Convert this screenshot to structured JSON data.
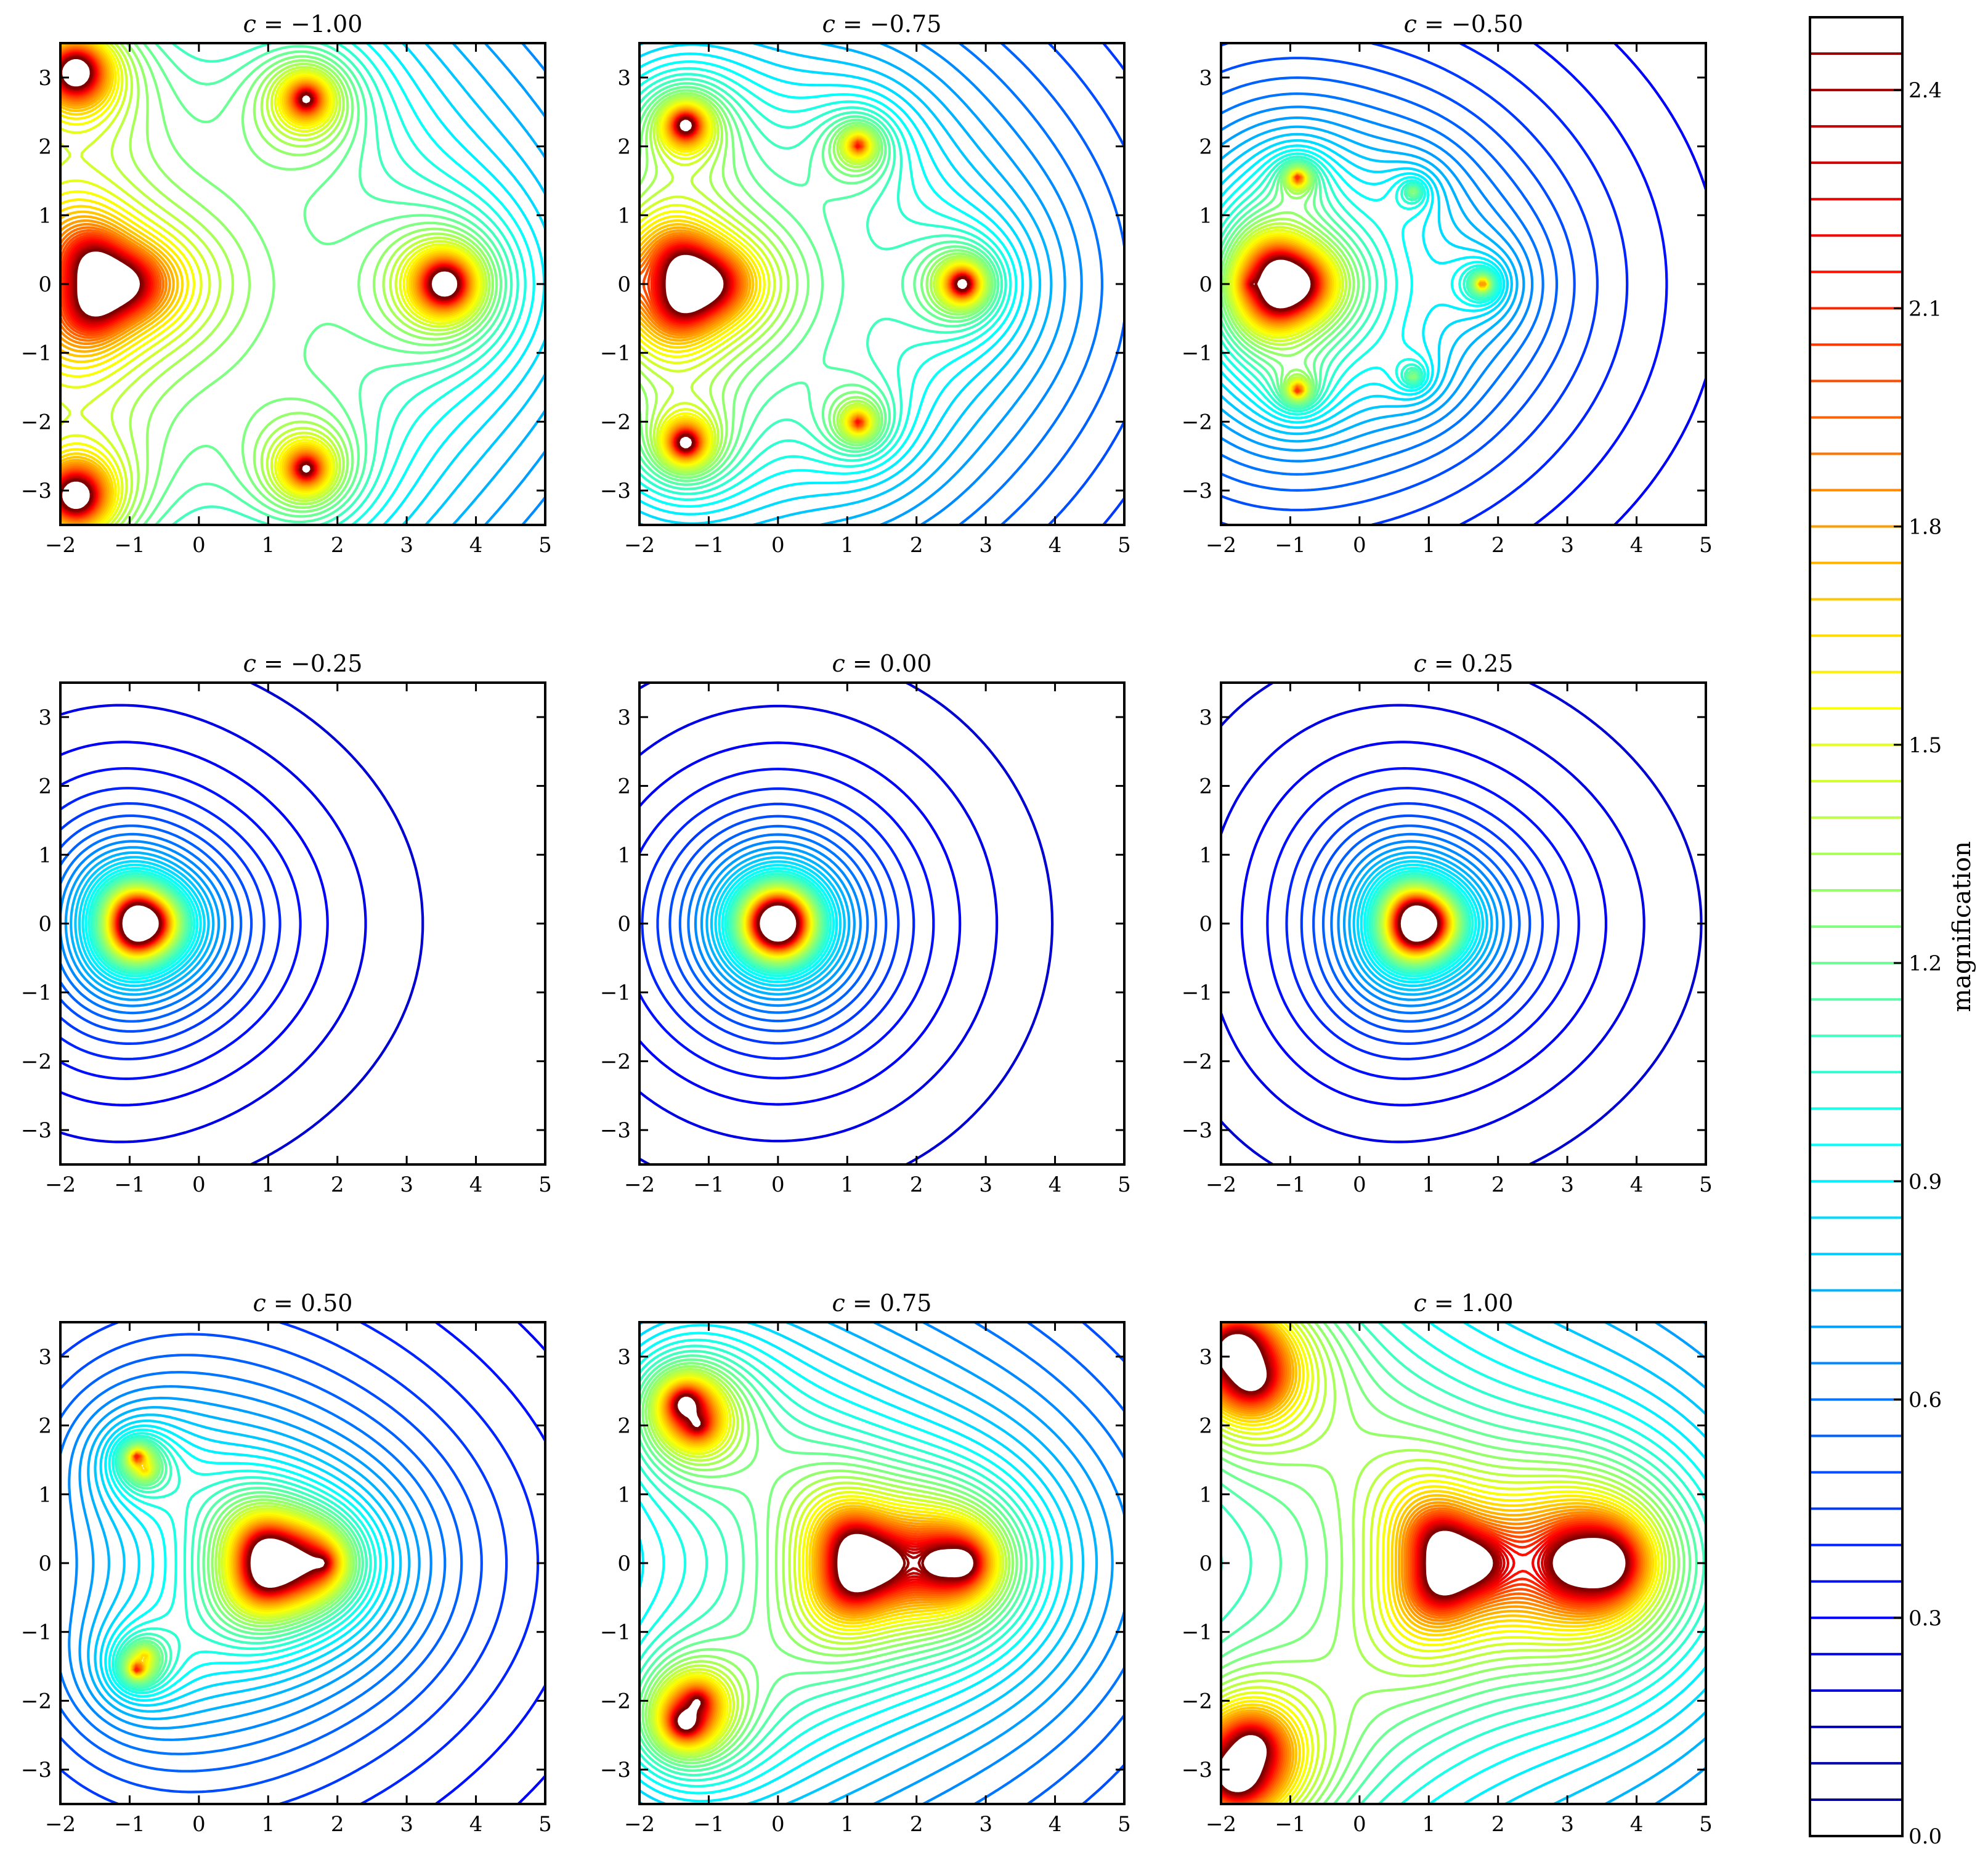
{
  "chart_data": {
    "type": "contour",
    "panels": [
      {
        "c": -1.0,
        "title_value": "−1.00"
      },
      {
        "c": -0.75,
        "title_value": "−0.75"
      },
      {
        "c": -0.5,
        "title_value": "−0.50"
      },
      {
        "c": -0.25,
        "title_value": "−0.25"
      },
      {
        "c": 0.0,
        "title_value": "0.00"
      },
      {
        "c": 0.25,
        "title_value": "0.25"
      },
      {
        "c": 0.5,
        "title_value": "0.50"
      },
      {
        "c": 0.75,
        "title_value": "0.75"
      },
      {
        "c": 1.0,
        "title_value": "1.00"
      }
    ],
    "title_prefix": "c = ",
    "xlim": [
      -2,
      5
    ],
    "ylim": [
      -3.5,
      3.5
    ],
    "x_ticks": [
      -2,
      -1,
      0,
      1,
      2,
      3,
      4,
      5
    ],
    "x_tick_labels": [
      "−2",
      "−1",
      "0",
      "1",
      "2",
      "3",
      "4",
      "5"
    ],
    "y_ticks": [
      -3,
      -2,
      -1,
      0,
      1,
      2,
      3
    ],
    "y_tick_labels": [
      "−3",
      "−2",
      "−1",
      "0",
      "1",
      "2",
      "3"
    ],
    "colorbar": {
      "label": "magnification",
      "range": [
        0.0,
        2.5
      ],
      "ticks": [
        0.0,
        0.3,
        0.6,
        0.9,
        1.2,
        1.5,
        1.8,
        2.1,
        2.4
      ],
      "tick_labels": [
        "0.0",
        "0.3",
        "0.6",
        "0.9",
        "1.2",
        "1.5",
        "1.8",
        "2.1",
        "2.4"
      ],
      "level_step": 0.05,
      "colormap": "jet"
    }
  }
}
